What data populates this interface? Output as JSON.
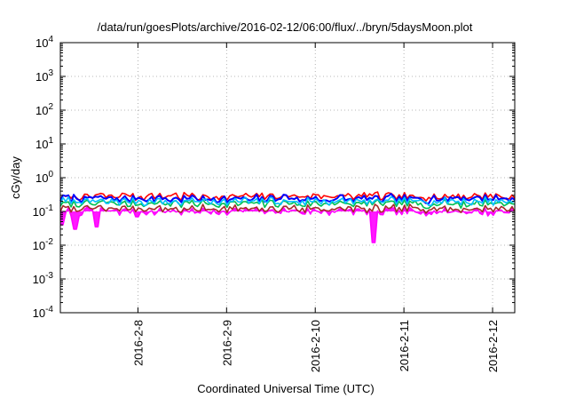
{
  "chart_data": {
    "type": "line",
    "title": "/data/run/goesPlots/archive/2016-02-12/06:00/flux/../bryn/5daysMoon.plot",
    "xlabel": "Coordinated Universal Time (UTC)",
    "ylabel": "cGy/day",
    "yscale": "log",
    "ylim": [
      0.0001,
      10000
    ],
    "y_ticks": [
      {
        "value": 0.0001,
        "base": "10",
        "exp": "-4"
      },
      {
        "value": 0.001,
        "base": "10",
        "exp": "-3"
      },
      {
        "value": 0.01,
        "base": "10",
        "exp": "-2"
      },
      {
        "value": 0.1,
        "base": "10",
        "exp": "-1"
      },
      {
        "value": 1,
        "base": "10",
        "exp": "0"
      },
      {
        "value": 10,
        "base": "10",
        "exp": "1"
      },
      {
        "value": 100,
        "base": "10",
        "exp": "2"
      },
      {
        "value": 1000,
        "base": "10",
        "exp": "3"
      },
      {
        "value": 10000,
        "base": "10",
        "exp": "4"
      }
    ],
    "xlim": [
      "2016-02-07 03:00",
      "2016-02-12 06:00"
    ],
    "x_ticks": [
      {
        "value": "2016-02-08 00:00",
        "label": "2016-2-8"
      },
      {
        "value": "2016-02-09 00:00",
        "label": "2016-2-9"
      },
      {
        "value": "2016-02-10 00:00",
        "label": "2016-2-10"
      },
      {
        "value": "2016-02-11 00:00",
        "label": "2016-2-11"
      },
      {
        "value": "2016-02-12 00:00",
        "label": "2016-2-12"
      }
    ],
    "grid": true,
    "legend": "none",
    "series": [
      {
        "color": "#ff00ff",
        "fill": true,
        "level": 0.1,
        "dips": [
          {
            "x": "2016-02-07 03:20",
            "y": 0.04
          },
          {
            "x": "2016-02-07 07:00",
            "y": 0.03
          },
          {
            "x": "2016-02-07 13:00",
            "y": 0.035
          },
          {
            "x": "2016-02-08 00:00",
            "y": 0.07
          },
          {
            "x": "2016-02-10 16:00",
            "y": 0.012
          }
        ]
      },
      {
        "color": "#a52a2a",
        "level": 0.12
      },
      {
        "color": "#ff0000",
        "level": 0.28
      },
      {
        "color": "#0000ff",
        "level": 0.24
      },
      {
        "color": "#00c050",
        "level": 0.17
      },
      {
        "color": "#00bfff",
        "level": 0.2
      }
    ]
  }
}
